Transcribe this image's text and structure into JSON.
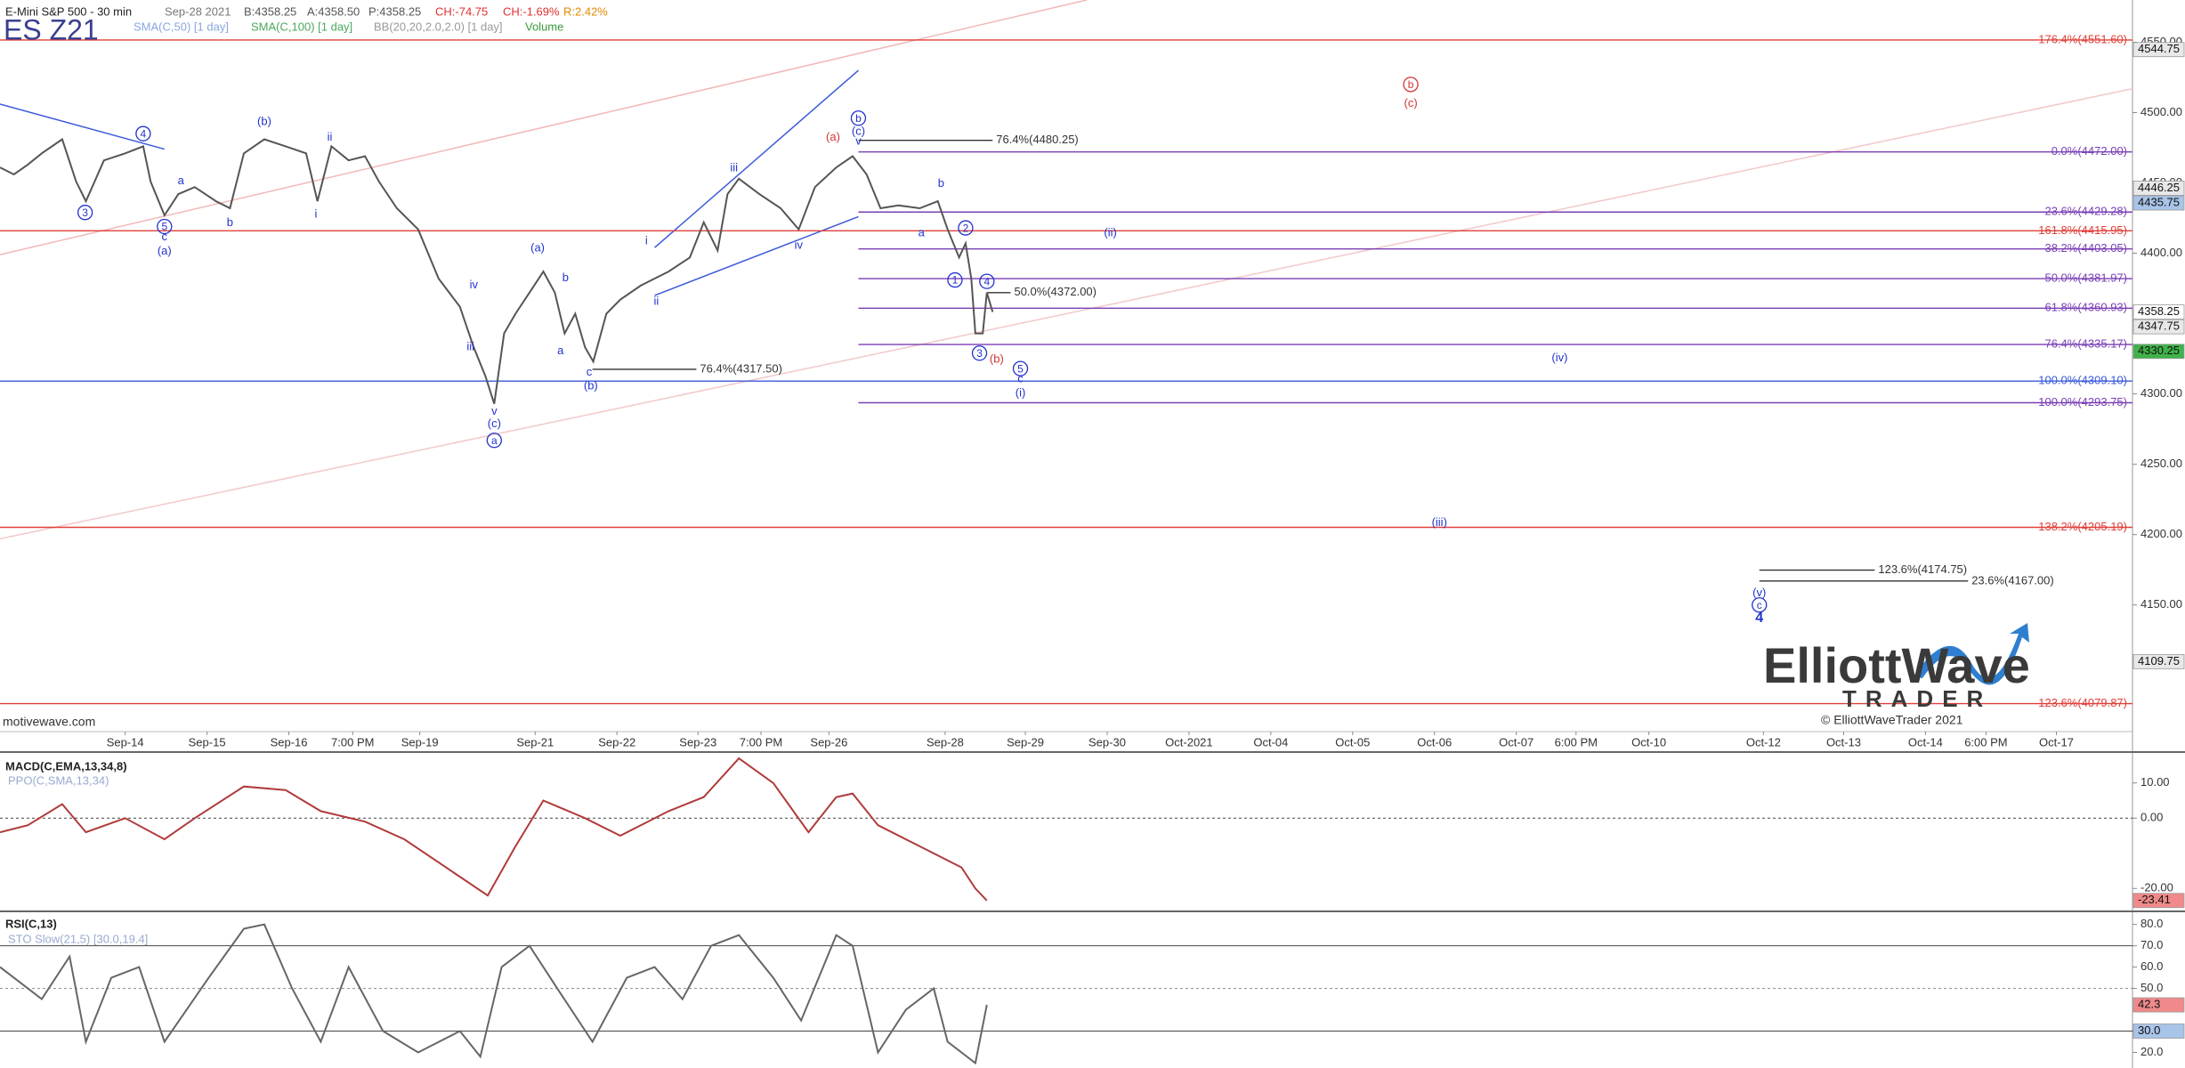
{
  "header": {
    "date": "Sep-28 2021",
    "bid": "B:4358.25",
    "ask": "A:4358.50",
    "price": "P:4358.25",
    "change": "CH:-74.75",
    "change_pct": "CH:-1.69%",
    "range": "R:2.42%",
    "ticker": "ES Z21",
    "indicators": [
      "SMA(C,50) [1 day]",
      "SMA(C,100) [1 day]",
      "BB(20,20,2.0,2.0) [1 day]",
      "Volume"
    ]
  },
  "watermark": "motivewave.com",
  "logo": {
    "line1": "ElliottWave",
    "line2": "TRADER",
    "copyright": "© ElliottWaveTrader 2021"
  },
  "chart_data": [
    {
      "type": "line",
      "title": "E-Mini S&P 500 - 30 min",
      "xlim": [
        -1.53,
        24.53
      ],
      "ylim": [
        4060,
        4580
      ],
      "xticks": [
        {
          "value": 0,
          "label": "Sep-14"
        },
        {
          "value": 1.0,
          "label": "Sep-15"
        },
        {
          "value": 2.0,
          "label": "Sep-16"
        },
        {
          "value": 2.78,
          "label": "7:00 PM"
        },
        {
          "value": 3.6,
          "label": "Sep-19"
        },
        {
          "value": 5.01,
          "label": "Sep-21"
        },
        {
          "value": 6.01,
          "label": "Sep-22"
        },
        {
          "value": 7.0,
          "label": "Sep-23"
        },
        {
          "value": 7.77,
          "label": "7:00 PM"
        },
        {
          "value": 8.6,
          "label": "Sep-26"
        },
        {
          "value": 10.02,
          "label": "Sep-28"
        },
        {
          "value": 11.0,
          "label": "Sep-29"
        },
        {
          "value": 12.0,
          "label": "Sep-30"
        },
        {
          "value": 13.0,
          "label": "Oct-2021"
        },
        {
          "value": 14.0,
          "label": "Oct-04"
        },
        {
          "value": 15.0,
          "label": "Oct-05"
        },
        {
          "value": 16.0,
          "label": "Oct-06"
        },
        {
          "value": 17.0,
          "label": "Oct-07"
        },
        {
          "value": 17.73,
          "label": "6:00 PM"
        },
        {
          "value": 18.62,
          "label": "Oct-10"
        },
        {
          "value": 20.02,
          "label": "Oct-12"
        },
        {
          "value": 21.0,
          "label": "Oct-13"
        },
        {
          "value": 22.0,
          "label": "Oct-14"
        },
        {
          "value": 22.74,
          "label": "6:00 PM"
        },
        {
          "value": 23.6,
          "label": "Oct-17"
        }
      ],
      "yticks": [
        {
          "value": 4150,
          "label": "4150.00"
        },
        {
          "value": 4200,
          "label": "4200.00"
        },
        {
          "value": 4250,
          "label": "4250.00"
        },
        {
          "value": 4300,
          "label": "4300.00"
        },
        {
          "value": 4400,
          "label": "4400.00"
        },
        {
          "value": 4450,
          "label": "4450.00"
        },
        {
          "value": 4500,
          "label": "4500.00"
        },
        {
          "value": 4550,
          "label": "4550.00"
        }
      ],
      "grid": false,
      "series": [
        {
          "color": "#555555",
          "x": [
            -1.53,
            -1.36,
            -1.19,
            -1.02,
            -0.77,
            -0.6,
            -0.48,
            -0.26,
            0,
            0.22,
            0.31,
            0.48,
            0.65,
            0.85,
            1.11,
            1.28,
            1.45,
            1.7,
            1.96,
            2.21,
            2.35,
            2.52,
            2.73,
            2.93,
            3.1,
            3.32,
            3.58,
            3.83,
            4.09,
            4.26,
            4.4,
            4.51,
            4.63,
            4.77,
            4.94,
            5.11,
            5.25,
            5.37,
            5.5,
            5.62,
            5.72,
            5.88,
            6.05,
            6.3,
            6.47,
            6.64,
            6.9,
            7.07,
            7.24,
            7.36,
            7.5,
            7.75,
            8.01,
            8.23,
            8.43,
            8.69,
            8.89,
            9.06,
            9.23,
            9.45,
            9.71,
            9.93,
            10.05,
            10.19,
            10.27,
            10.34,
            10.39,
            10.48,
            10.53,
            10.6
          ],
          "values": [
            4461,
            4456,
            4463,
            4471,
            4481,
            4451,
            4437,
            4466,
            4471,
            4476,
            4451,
            4427,
            4442,
            4447,
            4437,
            4432,
            4471,
            4481,
            4476,
            4471,
            4437,
            4476,
            4466,
            4469,
            4451,
            4432,
            4417,
            4382,
            4362,
            4333,
            4313,
            4293,
            4343,
            4357,
            4372,
            4387,
            4372,
            4343,
            4357,
            4333,
            4323,
            4357,
            4367,
            4377,
            4382,
            4387,
            4397,
            4422,
            4402,
            4442,
            4453,
            4442,
            4432,
            4417,
            4447,
            4461,
            4469,
            4456,
            4432,
            4434,
            4432,
            4437,
            4417,
            4397,
            4407,
            4382,
            4343,
            4343,
            4372,
            4358.25
          ]
        }
      ],
      "levels": [
        {
          "value": 4551.6,
          "label": "176.4%(4551.60)",
          "color": "#e0403a"
        },
        {
          "value": 4472.0,
          "label": "0.0%(4472.00)",
          "color": "#7a3fb5",
          "x0": 8.96
        },
        {
          "value": 4429.28,
          "label": "23.6%(4429.28)",
          "color": "#7a3fb5",
          "x0": 8.96
        },
        {
          "value": 4415.95,
          "label": "161.8%(4415.95)",
          "color": "#e0403a"
        },
        {
          "value": 4403.05,
          "label": "38.2%(4403.05)",
          "color": "#7a3fb5",
          "x0": 8.96
        },
        {
          "value": 4381.97,
          "label": "50.0%(4381.97)",
          "color": "#7a3fb5",
          "x0": 8.96
        },
        {
          "value": 4360.93,
          "label": "61.8%(4360.93)",
          "color": "#7a3fb5",
          "x0": 8.96
        },
        {
          "value": 4335.17,
          "label": "76.4%(4335.17)",
          "color": "#7a3fb5",
          "x0": 8.96
        },
        {
          "value": 4309.1,
          "label": "100.0%(4309.10)",
          "color": "#3a5ad9"
        },
        {
          "value": 4293.75,
          "label": "100.0%(4293.75)",
          "color": "#7a3fb5",
          "x0": 8.96
        },
        {
          "value": 4205.19,
          "label": "138.2%(4205.19)",
          "color": "#e0403a"
        },
        {
          "value": 4079.87,
          "label": "123.6%(4079.87)",
          "color": "#e0403a"
        },
        {
          "value": 4480.25,
          "label": "76.4%(4480.25)",
          "color": "#333333",
          "x0": 8.96,
          "x1": 10.6
        },
        {
          "value": 4372.0,
          "label": "50.0%(4372.00)",
          "color": "#333333",
          "x0": 10.53,
          "x1": 10.82
        },
        {
          "value": 4317.5,
          "label": "76.4%(4317.50)",
          "color": "#333333",
          "x0": 5.71,
          "x1": 6.98
        },
        {
          "value": 4174.75,
          "label": "123.6%(4174.75)",
          "color": "#333333",
          "x0": 19.97,
          "x1": 21.38
        },
        {
          "value": 4167.0,
          "label": "23.6%(4167.00)",
          "color": "#333333",
          "x0": 19.97,
          "x1": 22.52
        }
      ],
      "trendlines": [
        {
          "x": [
            -1.53,
            0.48
          ],
          "y": [
            4506,
            4474
          ],
          "color": "#3a5ad9"
        },
        {
          "x": [
            6.47,
            8.96
          ],
          "y": [
            4404,
            4530
          ],
          "color": "#3a5ad9"
        },
        {
          "x": [
            6.47,
            8.96
          ],
          "y": [
            4370,
            4426
          ],
          "color": "#3a5ad9"
        },
        {
          "x": [
            -1.53,
            11.75
          ],
          "y": [
            4399,
            4580
          ],
          "color": "#f2b8b8"
        },
        {
          "x": [
            -1.53,
            24.53
          ],
          "y": [
            4197,
            4517
          ],
          "color": "#f2c8c8"
        }
      ],
      "markers": [
        {
          "value": 4544.75,
          "color": "#e8e8e8"
        },
        {
          "value": 4446.25,
          "color": "#e8e8e8"
        },
        {
          "value": 4435.75,
          "color": "#a8c4e8"
        },
        {
          "value": 4358.25,
          "color": "#ffffff"
        },
        {
          "value": 4347.75,
          "color": "#e8e8e8"
        },
        {
          "value": 4330.25,
          "color": "#3fb24a"
        },
        {
          "value": 4109.75,
          "color": "#e8e8e8"
        }
      ],
      "annotations": [
        {
          "text": "4",
          "x": 0.22,
          "y": 4485,
          "color": "#2233cc",
          "circled": true
        },
        {
          "text": "3",
          "x": -0.49,
          "y": 4429,
          "color": "#2233cc",
          "circled": true
        },
        {
          "text": "5",
          "x": 0.48,
          "y": 4419,
          "color": "#2233cc",
          "circled": true
        },
        {
          "text": "c",
          "x": 0.48,
          "y": 4412,
          "color": "#2233cc"
        },
        {
          "text": "(a)",
          "x": 0.48,
          "y": 4402,
          "color": "#2233cc"
        },
        {
          "text": "(b)",
          "x": 1.7,
          "y": 4494,
          "color": "#2233cc"
        },
        {
          "text": "a",
          "x": 0.68,
          "y": 4452,
          "color": "#2233cc"
        },
        {
          "text": "b",
          "x": 1.28,
          "y": 4422,
          "color": "#2233cc"
        },
        {
          "text": "ii",
          "x": 2.5,
          "y": 4483,
          "color": "#2233cc"
        },
        {
          "text": "i",
          "x": 2.33,
          "y": 4428,
          "color": "#2233cc"
        },
        {
          "text": "iv",
          "x": 4.26,
          "y": 4378,
          "color": "#2233cc"
        },
        {
          "text": "iii",
          "x": 4.22,
          "y": 4334,
          "color": "#2233cc"
        },
        {
          "text": "v",
          "x": 4.51,
          "y": 4288,
          "color": "#2233cc"
        },
        {
          "text": "(c)",
          "x": 4.51,
          "y": 4279,
          "color": "#2233cc"
        },
        {
          "text": "a",
          "x": 4.51,
          "y": 4267,
          "color": "#2233cc",
          "circled": true
        },
        {
          "text": "(a)",
          "x": 5.04,
          "y": 4404,
          "color": "#2233cc"
        },
        {
          "text": "b",
          "x": 5.38,
          "y": 4383,
          "color": "#2233cc"
        },
        {
          "text": "a",
          "x": 5.32,
          "y": 4331,
          "color": "#2233cc"
        },
        {
          "text": "c",
          "x": 5.67,
          "y": 4316,
          "color": "#2233cc"
        },
        {
          "text": "(b)",
          "x": 5.69,
          "y": 4306,
          "color": "#2233cc"
        },
        {
          "text": "i",
          "x": 6.37,
          "y": 4409,
          "color": "#2233cc"
        },
        {
          "text": "ii",
          "x": 6.49,
          "y": 4366,
          "color": "#2233cc"
        },
        {
          "text": "iii",
          "x": 7.44,
          "y": 4461,
          "color": "#2233cc"
        },
        {
          "text": "iv",
          "x": 8.23,
          "y": 4406,
          "color": "#2233cc"
        },
        {
          "text": "(a)",
          "x": 8.65,
          "y": 4483,
          "color": "#d33333"
        },
        {
          "text": "b",
          "x": 8.96,
          "y": 4496,
          "color": "#2233cc",
          "circled": true
        },
        {
          "text": "(c)",
          "x": 8.96,
          "y": 4487,
          "color": "#2233cc"
        },
        {
          "text": "v",
          "x": 8.96,
          "y": 4480,
          "color": "#2233cc"
        },
        {
          "text": "b",
          "x": 9.97,
          "y": 4450,
          "color": "#2233cc"
        },
        {
          "text": "a",
          "x": 9.73,
          "y": 4415,
          "color": "#2233cc"
        },
        {
          "text": "2",
          "x": 10.27,
          "y": 4418,
          "color": "#2233cc",
          "circled": true
        },
        {
          "text": "1",
          "x": 10.14,
          "y": 4381,
          "color": "#2233cc",
          "circled": true
        },
        {
          "text": "4",
          "x": 10.53,
          "y": 4380,
          "color": "#2233cc",
          "circled": true
        },
        {
          "text": "3",
          "x": 10.44,
          "y": 4329,
          "color": "#2233cc",
          "circled": true
        },
        {
          "text": "(b)",
          "x": 10.65,
          "y": 4325,
          "color": "#d33333"
        },
        {
          "text": "5",
          "x": 10.94,
          "y": 4318,
          "color": "#2233cc",
          "circled": true
        },
        {
          "text": "c",
          "x": 10.94,
          "y": 4311,
          "color": "#2233cc"
        },
        {
          "text": "(i)",
          "x": 10.94,
          "y": 4301,
          "color": "#2233cc"
        },
        {
          "text": "(ii)",
          "x": 12.04,
          "y": 4415,
          "color": "#2233cc"
        },
        {
          "text": "(iii)",
          "x": 16.06,
          "y": 4209,
          "color": "#2233cc"
        },
        {
          "text": "(iv)",
          "x": 17.53,
          "y": 4326,
          "color": "#2233cc"
        },
        {
          "text": "(v)",
          "x": 19.97,
          "y": 4159,
          "color": "#2233cc"
        },
        {
          "text": "c",
          "x": 19.97,
          "y": 4150,
          "color": "#2233cc",
          "circled": true
        },
        {
          "text": "4",
          "x": 19.97,
          "y": 4141,
          "color": "#2233cc",
          "bold": true
        },
        {
          "text": "b",
          "x": 15.71,
          "y": 4520,
          "color": "#d33333",
          "circled": true
        },
        {
          "text": "(c)",
          "x": 15.71,
          "y": 4507,
          "color": "#d33333"
        }
      ]
    },
    {
      "type": "line",
      "title": "MACD(C,EMA,13,34,8)",
      "subtitle": "PPO(C,SMA,13,34)",
      "xlim": [
        -1.53,
        24.53
      ],
      "ylim": [
        -26,
        18.8
      ],
      "yticks": [
        {
          "value": 10,
          "label": "10.00"
        },
        {
          "value": 0,
          "label": "0.00"
        },
        {
          "value": -20,
          "label": "-20.00"
        }
      ],
      "guides": [
        0
      ],
      "series": [
        {
          "color": "#b03a3a",
          "x": [
            -1.53,
            -1.19,
            -0.77,
            -0.48,
            0,
            0.48,
            0.85,
            1.45,
            1.96,
            2.39,
            2.93,
            3.41,
            3.92,
            4.43,
            4.77,
            5.11,
            5.62,
            6.05,
            6.64,
            7.07,
            7.5,
            7.92,
            8.35,
            8.69,
            8.89,
            9.2,
            9.71,
            10.22,
            10.39,
            10.53
          ],
          "values": [
            -4,
            -2,
            4,
            -4,
            0,
            -6,
            0,
            9,
            8,
            2,
            -1,
            -6,
            -14,
            -22,
            -8,
            5,
            0,
            -5,
            2,
            6,
            17,
            10,
            -4,
            6,
            7,
            -2,
            -8,
            -14,
            -20,
            -23.41
          ]
        }
      ],
      "markers": [
        {
          "value": -23.41,
          "color": "#f08a8a"
        }
      ]
    },
    {
      "type": "line",
      "title": "RSI(C,13)",
      "subtitle": "STO Slow(21,5) [30.0,19.4]",
      "xlim": [
        -1.53,
        24.53
      ],
      "ylim": [
        12.7,
        85.3
      ],
      "yticks": [
        {
          "value": 80,
          "label": "80.0"
        },
        {
          "value": 70,
          "label": "70.0"
        },
        {
          "value": 60,
          "label": "60.0"
        },
        {
          "value": 50,
          "label": "50.0"
        },
        {
          "value": 30,
          "label": "30.0"
        },
        {
          "value": 20,
          "label": "20.0"
        }
      ],
      "guides": [
        70,
        50,
        30
      ],
      "series": [
        {
          "color": "#666666",
          "x": [
            -1.53,
            -1.02,
            -0.68,
            -0.48,
            -0.17,
            0.17,
            0.48,
            1.02,
            1.45,
            1.7,
            2.04,
            2.39,
            2.73,
            3.15,
            3.58,
            4.09,
            4.34,
            4.6,
            4.94,
            5.28,
            5.71,
            6.13,
            6.47,
            6.81,
            7.16,
            7.5,
            7.92,
            8.26,
            8.69,
            8.89,
            9.2,
            9.54,
            9.88,
            10.05,
            10.39,
            10.53
          ],
          "values": [
            60,
            45,
            65,
            25,
            55,
            60,
            25,
            55,
            78,
            80,
            50,
            25,
            60,
            30,
            20,
            30,
            18,
            60,
            70,
            50,
            25,
            55,
            60,
            45,
            70,
            75,
            55,
            35,
            75,
            70,
            20,
            40,
            50,
            25,
            15,
            42.3
          ]
        }
      ],
      "markers": [
        {
          "value": 42.3,
          "color": "#f08a8a"
        },
        {
          "value": 30,
          "label": "30.0",
          "color": "#a8c4e8"
        }
      ]
    }
  ]
}
